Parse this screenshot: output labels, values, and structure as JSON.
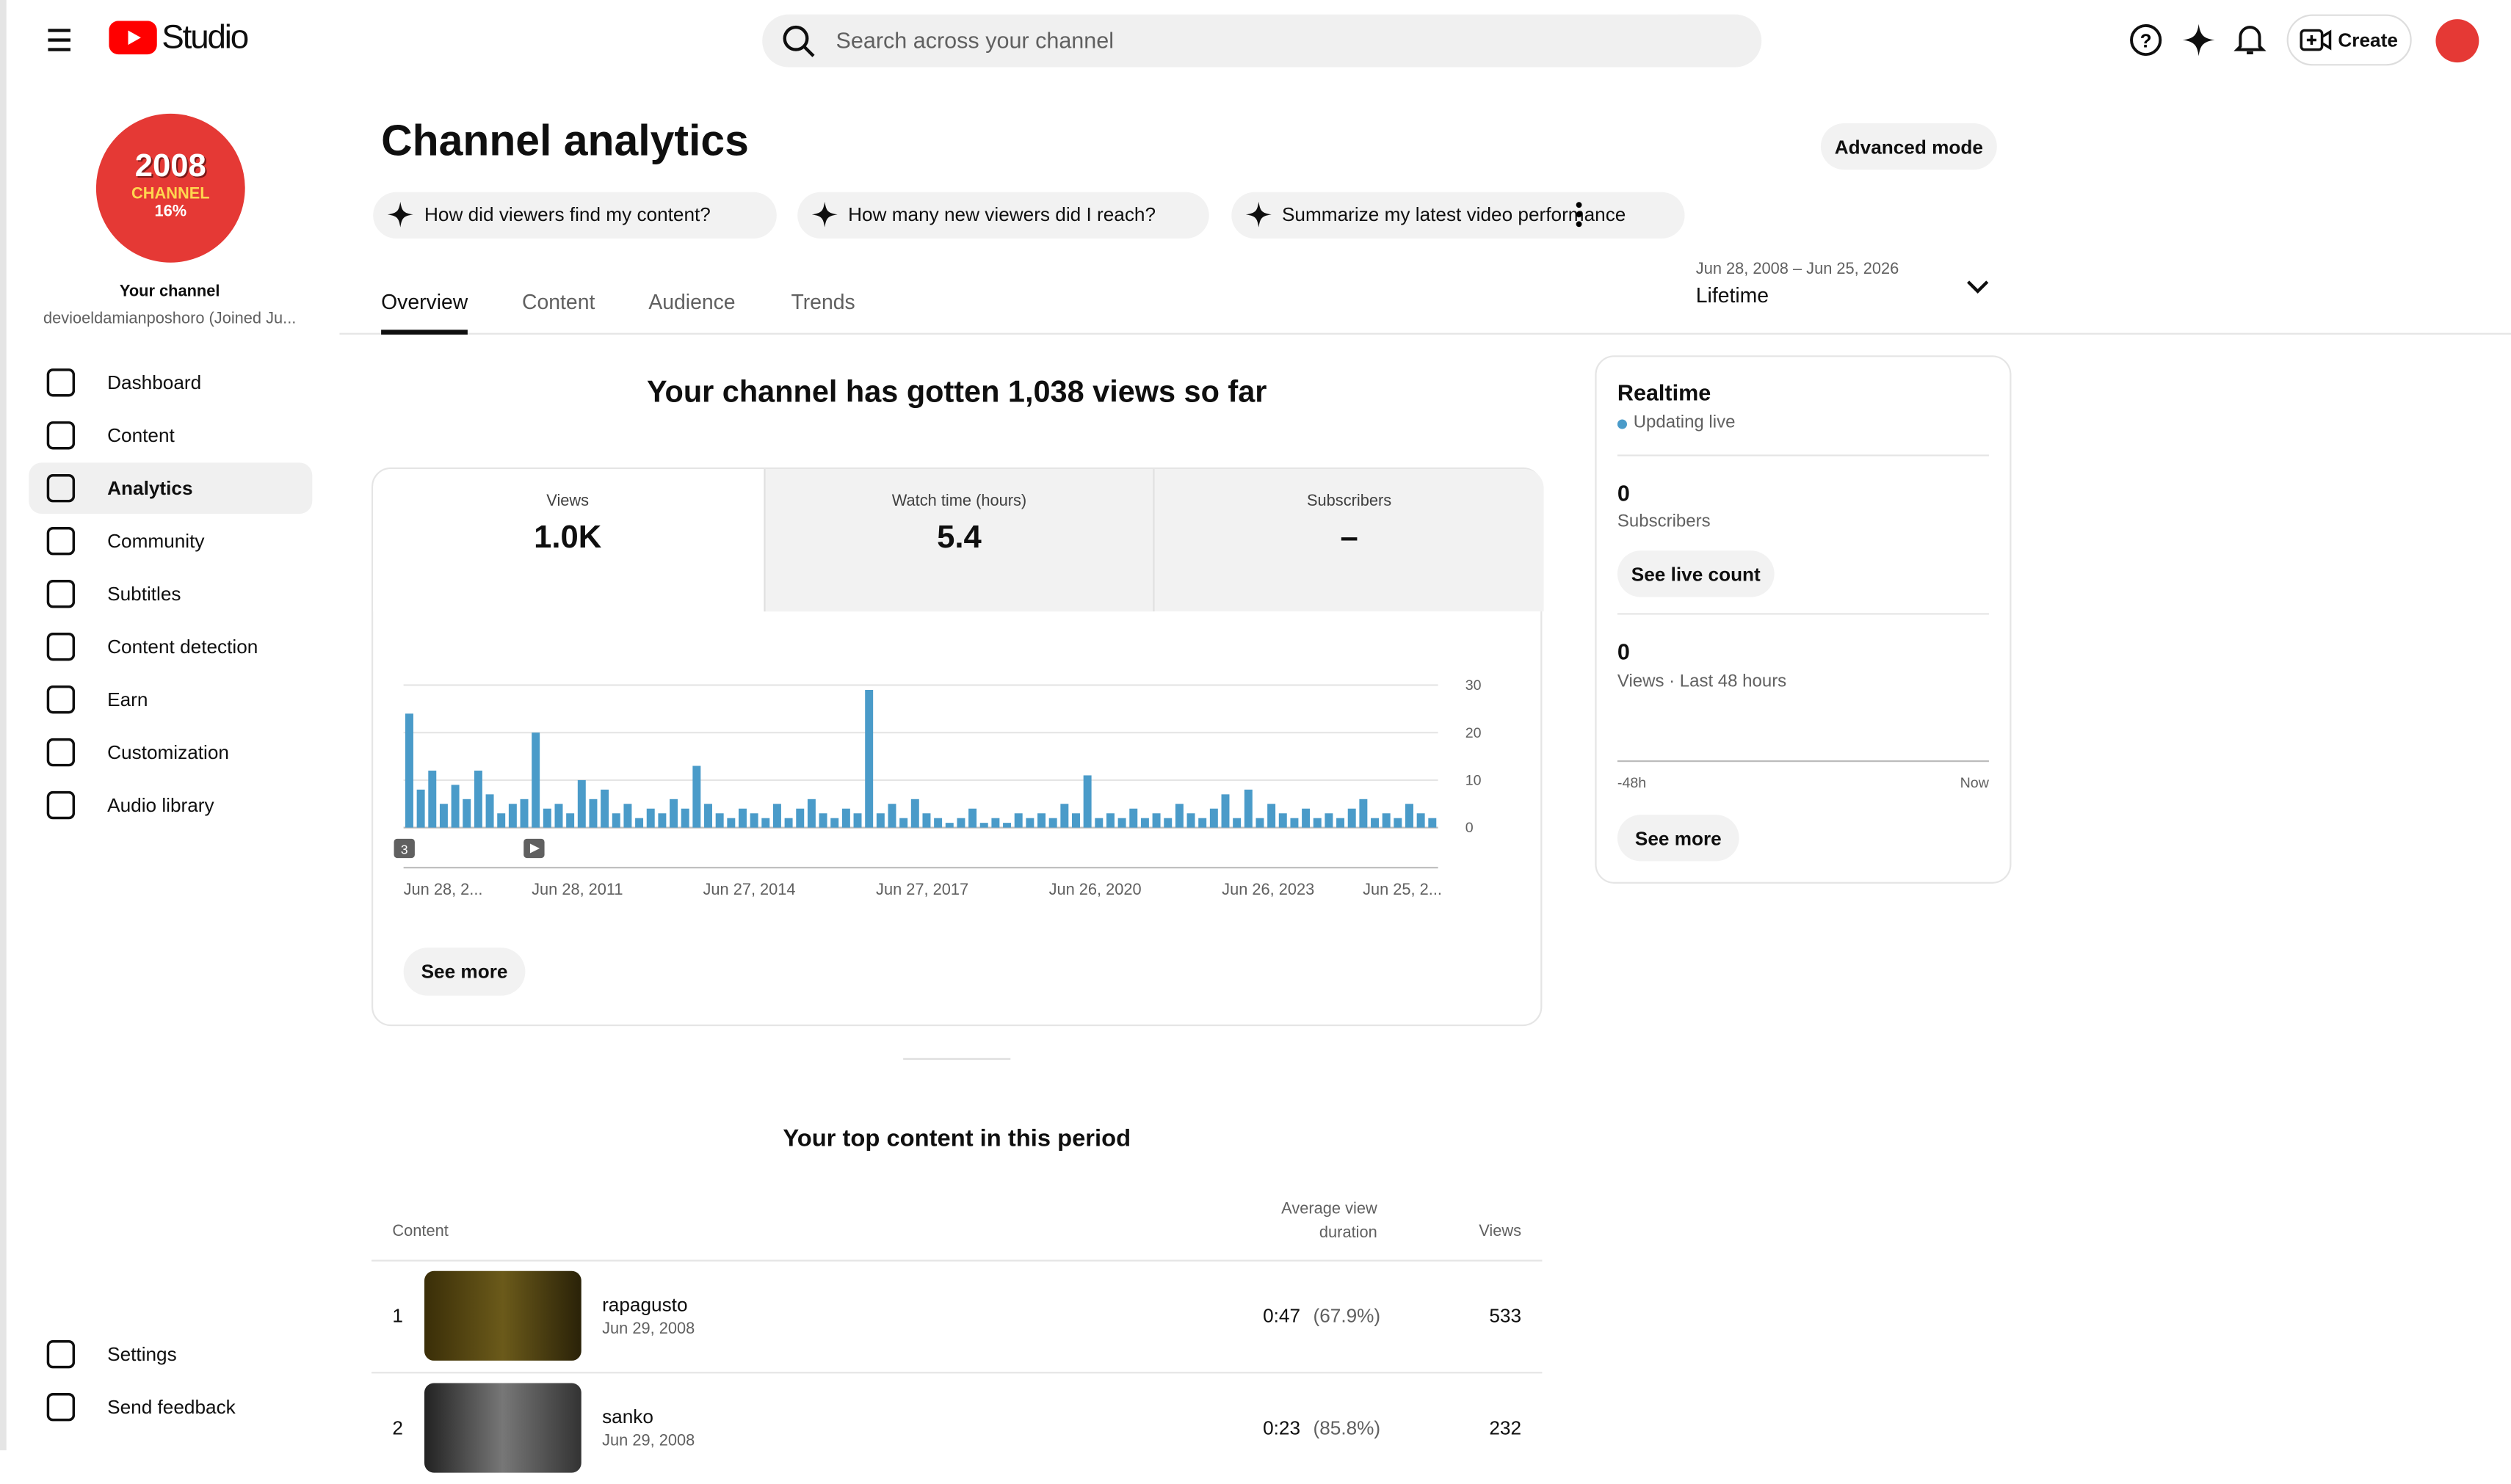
{
  "header": {
    "logo_text": "Studio",
    "search_placeholder": "Search across your channel",
    "create": "Create"
  },
  "sidebar": {
    "avatar_year": "2008",
    "avatar_word": "CHANNEL",
    "avatar_pct": "16%",
    "channel_label": "Your channel",
    "channel_name": "devioeldamianposhoro (Joined Ju...",
    "nav": [
      "Dashboard",
      "Content",
      "Analytics",
      "Community",
      "Subtitles",
      "Content detection",
      "Earn",
      "Customization",
      "Audio library"
    ],
    "bottom_nav": [
      "Settings",
      "Send feedback"
    ]
  },
  "page": {
    "title": "Channel analytics",
    "advanced": "Advanced mode",
    "prompts": [
      "How did viewers find my content?",
      "How many new viewers did I reach?",
      "Summarize my latest video performance"
    ],
    "tabs": [
      "Overview",
      "Content",
      "Audience",
      "Trends"
    ],
    "date_range": "Jun 28, 2008 – Jun 25, 2026",
    "period": "Lifetime"
  },
  "summary": {
    "headline": "Your channel has gotten 1,038 views so far",
    "metrics": [
      {
        "label": "Views",
        "value": "1.0K"
      },
      {
        "label": "Watch time (hours)",
        "value": "5.4"
      },
      {
        "label": "Subscribers",
        "value": "–"
      }
    ],
    "see_more": "See more"
  },
  "chart_data": {
    "type": "bar",
    "color": "#4a9bc9",
    "values": [
      24,
      8,
      12,
      5,
      9,
      6,
      12,
      7,
      3,
      5,
      6,
      20,
      4,
      5,
      3,
      10,
      6,
      8,
      3,
      5,
      2,
      4,
      3,
      6,
      4,
      13,
      5,
      3,
      2,
      4,
      3,
      2,
      5,
      2,
      4,
      6,
      3,
      2,
      4,
      3,
      29,
      3,
      5,
      2,
      6,
      3,
      2,
      1,
      2,
      4,
      1,
      2,
      1,
      3,
      2,
      3,
      2,
      5,
      3,
      11,
      2,
      3,
      2,
      4,
      2,
      3,
      2,
      5,
      3,
      2,
      4,
      7,
      2,
      8,
      2,
      5,
      3,
      2,
      4,
      2,
      3,
      2,
      4,
      6,
      2,
      3,
      2,
      5,
      3,
      2
    ],
    "ylim": [
      0,
      30
    ],
    "yticks": [
      0,
      10,
      20,
      30
    ],
    "x_labels": [
      "Jun 28, 2...",
      "Jun 28, 2011",
      "Jun 27, 2014",
      "Jun 27, 2017",
      "Jun 26, 2020",
      "Jun 26, 2023",
      "Jun 25, 2..."
    ],
    "marker": "3"
  },
  "realtime": {
    "title": "Realtime",
    "status": "Updating live",
    "subscribers": 0,
    "subscribers_label": "Subscribers",
    "live_count": "See live count",
    "views": 0,
    "views_label": "Views · Last 48 hours",
    "axis_start": "-48h",
    "axis_end": "Now",
    "see_more": "See more"
  },
  "top_content": {
    "title": "Your top content in this period",
    "col_content": "Content",
    "col_duration": "Average view duration",
    "col_views": "Views",
    "rows": [
      {
        "rank": 1,
        "title": "rapagusto",
        "date": "Jun 29, 2008",
        "duration": "0:47",
        "percent": "(67.9%)",
        "views": 533
      },
      {
        "rank": 2,
        "title": "sanko",
        "date": "Jun 29, 2008",
        "duration": "0:23",
        "percent": "(85.8%)",
        "views": 232
      }
    ]
  }
}
